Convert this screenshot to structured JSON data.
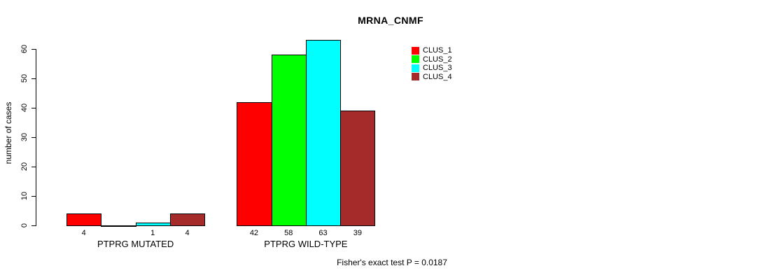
{
  "colors": {
    "background": "#ffffff",
    "axis": "#000000",
    "clus_1": "#ff0000",
    "clus_2": "#00ff00",
    "clus_3": "#00ffff",
    "clus_4": "#a52a2a"
  },
  "chart_data": {
    "type": "bar",
    "title": "MRNA_CNMF",
    "ylabel": "number of cases",
    "xlabel": "",
    "ylim": [
      0,
      60
    ],
    "yticks": [
      0,
      10,
      20,
      30,
      40,
      50,
      60
    ],
    "grid": false,
    "legend_position": "top-right",
    "categories": [
      "PTPRG MUTATED",
      "PTPRG WILD-TYPE"
    ],
    "series": [
      {
        "name": "CLUS_1",
        "color": "#ff0000",
        "values": [
          4,
          42
        ]
      },
      {
        "name": "CLUS_2",
        "color": "#00ff00",
        "values": [
          0,
          58
        ]
      },
      {
        "name": "CLUS_3",
        "color": "#00ffff",
        "values": [
          1,
          63
        ]
      },
      {
        "name": "CLUS_4",
        "color": "#a52a2a",
        "values": [
          4,
          39
        ]
      }
    ],
    "bar_value_labels_visible": [
      "4",
      "1",
      "4",
      "42",
      "58",
      "63",
      "39"
    ],
    "zero_value_labels_hidden": true,
    "annotation": "Fisher's exact test P = 0.0187"
  }
}
